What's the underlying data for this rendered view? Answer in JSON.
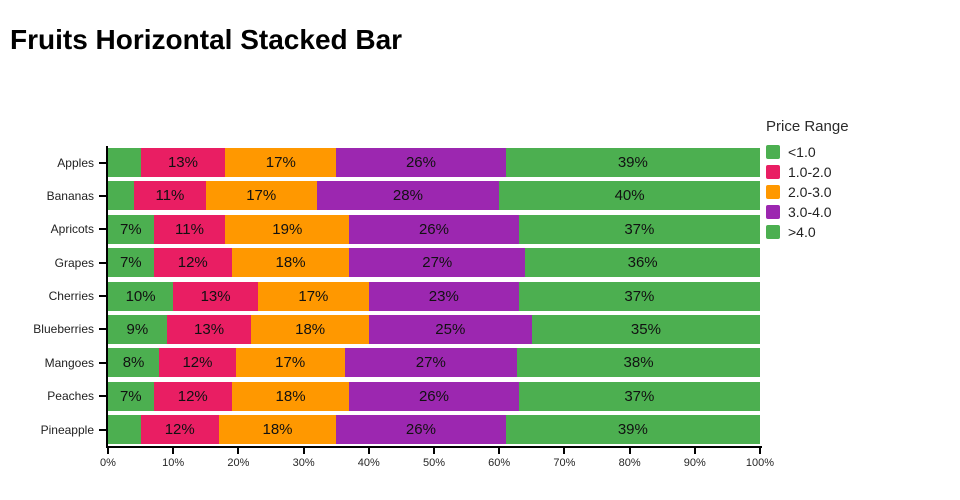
{
  "title": "Fruits Horizontal Stacked Bar",
  "legend": {
    "title": "Price Range",
    "entries": [
      {
        "label": "<1.0",
        "color": "#4CAF50"
      },
      {
        "label": "1.0-2.0",
        "color": "#E91E63"
      },
      {
        "label": "2.0-3.0",
        "color": "#FF9800"
      },
      {
        "label": "3.0-4.0",
        "color": "#9C27B0"
      },
      {
        "label": ">4.0",
        "color": "#4CAF50"
      }
    ]
  },
  "chart_data": {
    "type": "bar",
    "orientation": "horizontal",
    "stacked": true,
    "title": "Fruits Horizontal Stacked Bar",
    "xlabel": "",
    "ylabel": "",
    "xlim": [
      0,
      100
    ],
    "value_suffix": "%",
    "grid": false,
    "legend_position": "right",
    "categories": [
      "Apples",
      "Bananas",
      "Apricots",
      "Grapes",
      "Cherries",
      "Blueberries",
      "Mangoes",
      "Peaches",
      "Pineapple"
    ],
    "series": [
      {
        "name": "<1.0",
        "color": "#4CAF50",
        "values": [
          5,
          4,
          7,
          7,
          10,
          9,
          8,
          7,
          5
        ],
        "labels": [
          "",
          "",
          "7%",
          "7%",
          "10%",
          "9%",
          "8%",
          "7%",
          ""
        ]
      },
      {
        "name": "1.0-2.0",
        "color": "#E91E63",
        "values": [
          13,
          11,
          11,
          12,
          13,
          13,
          12,
          12,
          12
        ],
        "labels": [
          "13%",
          "11%",
          "11%",
          "12%",
          "13%",
          "13%",
          "12%",
          "12%",
          "12%"
        ]
      },
      {
        "name": "2.0-3.0",
        "color": "#FF9800",
        "values": [
          17,
          17,
          19,
          18,
          17,
          18,
          17,
          18,
          18
        ],
        "labels": [
          "17%",
          "17%",
          "19%",
          "18%",
          "17%",
          "18%",
          "17%",
          "18%",
          "18%"
        ]
      },
      {
        "name": "3.0-4.0",
        "color": "#9C27B0",
        "values": [
          26,
          28,
          26,
          27,
          23,
          25,
          27,
          26,
          26
        ],
        "labels": [
          "26%",
          "28%",
          "26%",
          "27%",
          "23%",
          "25%",
          "27%",
          "26%",
          "26%"
        ]
      },
      {
        "name": ">4.0",
        "color": "#4CAF50",
        "values": [
          39,
          40,
          37,
          36,
          37,
          35,
          38,
          37,
          39
        ],
        "labels": [
          "39%",
          "40%",
          "37%",
          "36%",
          "37%",
          "35%",
          "38%",
          "37%",
          "39%"
        ]
      }
    ],
    "x_ticks": [
      "0%",
      "10%",
      "20%",
      "30%",
      "40%",
      "50%",
      "60%",
      "70%",
      "80%",
      "90%",
      "100%"
    ]
  }
}
